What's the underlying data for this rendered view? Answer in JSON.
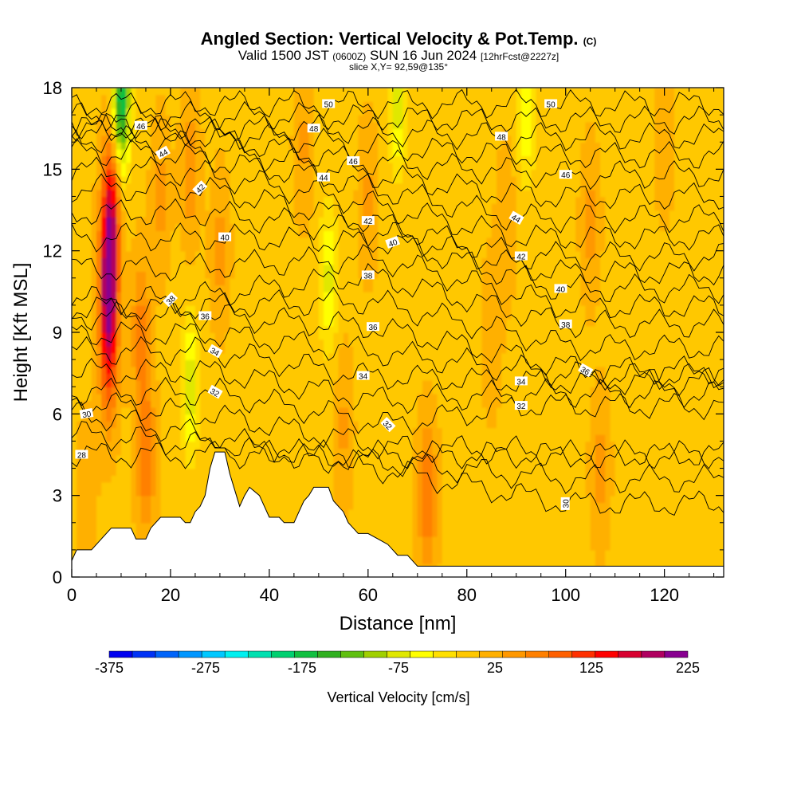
{
  "header": {
    "title": "Angled Section: Vertical Velocity & Pot.Temp.",
    "title_mark": "(C)",
    "valid_a": "Valid 1500 JST",
    "valid_z": "(0600Z)",
    "valid_b": "SUN 16 Jun 2024",
    "fcst": "[12hrFcst@2227z]",
    "slice": "slice X,Y= 92,59@135°"
  },
  "chart_data": {
    "type": "heatmap",
    "xlabel": "Distance [nm]",
    "ylabel": "Height [Kft MSL]",
    "xlim": [
      0,
      132
    ],
    "ylim": [
      0,
      18
    ],
    "x_ticks": [
      0,
      20,
      40,
      60,
      80,
      100,
      120
    ],
    "y_ticks": [
      0,
      3,
      6,
      9,
      12,
      15,
      18
    ],
    "colorbar": {
      "label": "Vertical Velocity [cm/s]",
      "min": -375,
      "max": 225,
      "step": 25,
      "tick_values": [
        -375,
        -275,
        -175,
        -75,
        25,
        125,
        225
      ],
      "colors": [
        "#0000f0",
        "#0032f5",
        "#0064fa",
        "#0096ff",
        "#00c8ff",
        "#00f0f0",
        "#00e0b0",
        "#00d070",
        "#10c040",
        "#30b020",
        "#60c010",
        "#a0d000",
        "#e0e800",
        "#ffff00",
        "#ffe000",
        "#ffc800",
        "#ffb000",
        "#ff9800",
        "#ff8000",
        "#ff6000",
        "#ff3000",
        "#ff0000",
        "#d80030",
        "#b00060",
        "#880090"
      ]
    },
    "background_velocity": 20,
    "velocity_cores": [
      {
        "x": 7.5,
        "y": 11,
        "value": 225
      },
      {
        "x": 7.5,
        "y": 8,
        "value": 125
      },
      {
        "x": 8,
        "y": 14,
        "value": 150
      },
      {
        "x": 10,
        "y": 17.5,
        "value": -175
      },
      {
        "x": 14,
        "y": 9,
        "value": 90
      },
      {
        "x": 18,
        "y": 14,
        "value": 60
      },
      {
        "x": 15,
        "y": 4.5,
        "value": 100
      },
      {
        "x": 24,
        "y": 7,
        "value": -70
      },
      {
        "x": 24,
        "y": 15,
        "value": 70
      },
      {
        "x": 30,
        "y": 12,
        "value": 60
      },
      {
        "x": 47,
        "y": 16,
        "value": 55
      },
      {
        "x": 52,
        "y": 11,
        "value": -60
      },
      {
        "x": 60,
        "y": 14,
        "value": 55
      },
      {
        "x": 66,
        "y": 17.5,
        "value": -70
      },
      {
        "x": 55,
        "y": 5.5,
        "value": 55
      },
      {
        "x": 72,
        "y": 3,
        "value": 100
      },
      {
        "x": 85,
        "y": 9,
        "value": 50
      },
      {
        "x": 88,
        "y": 13,
        "value": 50
      },
      {
        "x": 105,
        "y": 13,
        "value": 60
      },
      {
        "x": 107,
        "y": 4,
        "value": 60
      },
      {
        "x": 120,
        "y": 16,
        "value": 45
      },
      {
        "x": 3,
        "y": 3,
        "value": 50
      },
      {
        "x": 92,
        "y": 17,
        "value": -50
      }
    ],
    "terrain_kft": [
      [
        0,
        0.6
      ],
      [
        1,
        1.0
      ],
      [
        4,
        1.0
      ],
      [
        6,
        1.4
      ],
      [
        8,
        1.8
      ],
      [
        12,
        1.8
      ],
      [
        13,
        1.4
      ],
      [
        15,
        1.4
      ],
      [
        16,
        1.8
      ],
      [
        18,
        2.2
      ],
      [
        22,
        2.2
      ],
      [
        23,
        2.0
      ],
      [
        24,
        2.0
      ],
      [
        25,
        2.4
      ],
      [
        26,
        2.6
      ],
      [
        27,
        3.0
      ],
      [
        28,
        4.0
      ],
      [
        29,
        4.6
      ],
      [
        31,
        4.6
      ],
      [
        32,
        3.8
      ],
      [
        33,
        3.2
      ],
      [
        34,
        2.6
      ],
      [
        35,
        3.0
      ],
      [
        36,
        3.3
      ],
      [
        38,
        3.0
      ],
      [
        39,
        2.6
      ],
      [
        40,
        2.2
      ],
      [
        42,
        2.2
      ],
      [
        43,
        2.0
      ],
      [
        45,
        2.0
      ],
      [
        46,
        2.4
      ],
      [
        47,
        2.8
      ],
      [
        48,
        3.0
      ],
      [
        49,
        3.3
      ],
      [
        52,
        3.3
      ],
      [
        53,
        2.8
      ],
      [
        55,
        2.4
      ],
      [
        56,
        2.0
      ],
      [
        57,
        1.8
      ],
      [
        58,
        1.6
      ],
      [
        60,
        1.6
      ],
      [
        62,
        1.4
      ],
      [
        64,
        1.2
      ],
      [
        66,
        0.8
      ],
      [
        68,
        0.8
      ],
      [
        70,
        0.4
      ],
      [
        132,
        0.4
      ]
    ],
    "theta_contours": {
      "levels": [
        28,
        29,
        30,
        31,
        32,
        33,
        34,
        35,
        36,
        37,
        38,
        39,
        40,
        41,
        42,
        43,
        44,
        45,
        46,
        47,
        48,
        49,
        50
      ],
      "labels": [
        {
          "text": "28",
          "x": 2,
          "y": 4.5,
          "angle": 0
        },
        {
          "text": "30",
          "x": 3,
          "y": 6.0,
          "angle": -10
        },
        {
          "text": "30",
          "x": 100,
          "y": 2.7,
          "angle": -90
        },
        {
          "text": "32",
          "x": 29,
          "y": 6.8,
          "angle": 30
        },
        {
          "text": "32",
          "x": 64,
          "y": 5.6,
          "angle": 45
        },
        {
          "text": "32",
          "x": 91,
          "y": 6.3,
          "angle": 0
        },
        {
          "text": "34",
          "x": 29,
          "y": 8.3,
          "angle": 30
        },
        {
          "text": "34",
          "x": 59,
          "y": 7.4,
          "angle": 0
        },
        {
          "text": "34",
          "x": 91,
          "y": 7.2,
          "angle": 0
        },
        {
          "text": "36",
          "x": 27,
          "y": 9.6,
          "angle": 0
        },
        {
          "text": "36",
          "x": 61,
          "y": 9.2,
          "angle": 0
        },
        {
          "text": "36",
          "x": 104,
          "y": 7.6,
          "angle": 30
        },
        {
          "text": "38",
          "x": 20,
          "y": 10.2,
          "angle": -45
        },
        {
          "text": "38",
          "x": 60,
          "y": 11.1,
          "angle": 0
        },
        {
          "text": "38",
          "x": 100,
          "y": 9.3,
          "angle": 0
        },
        {
          "text": "40",
          "x": 31,
          "y": 12.5,
          "angle": 0
        },
        {
          "text": "40",
          "x": 65,
          "y": 12.3,
          "angle": -20
        },
        {
          "text": "40",
          "x": 99,
          "y": 10.6,
          "angle": 0
        },
        {
          "text": "42",
          "x": 26,
          "y": 14.3,
          "angle": -45
        },
        {
          "text": "42",
          "x": 60,
          "y": 13.1,
          "angle": 0
        },
        {
          "text": "42",
          "x": 91,
          "y": 11.8,
          "angle": 0
        },
        {
          "text": "44",
          "x": 18.5,
          "y": 15.6,
          "angle": -30
        },
        {
          "text": "44",
          "x": 51,
          "y": 14.7,
          "angle": 0
        },
        {
          "text": "44",
          "x": 90,
          "y": 13.2,
          "angle": 30
        },
        {
          "text": "46",
          "x": 14,
          "y": 16.6,
          "angle": 0
        },
        {
          "text": "46",
          "x": 57,
          "y": 15.3,
          "angle": 0
        },
        {
          "text": "46",
          "x": 100,
          "y": 14.8,
          "angle": 0
        },
        {
          "text": "48",
          "x": 49,
          "y": 16.5,
          "angle": 0
        },
        {
          "text": "48",
          "x": 87,
          "y": 16.2,
          "angle": 0
        },
        {
          "text": "50",
          "x": 52,
          "y": 17.4,
          "angle": 0
        },
        {
          "text": "50",
          "x": 97,
          "y": 17.4,
          "angle": 0
        }
      ]
    }
  }
}
